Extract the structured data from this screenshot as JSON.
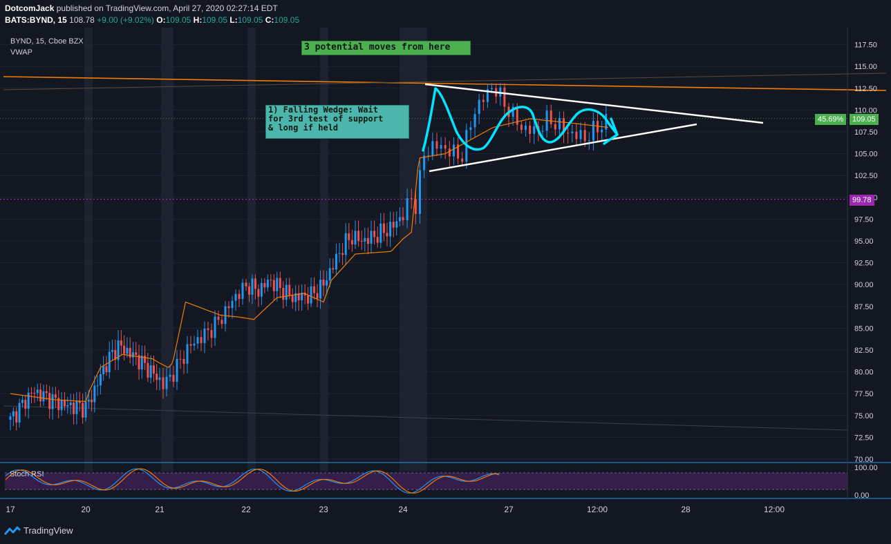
{
  "header": {
    "author": "DotcomJack",
    "published_text": "published on TradingView.com, April 27, 2020 02:27:14 EDT",
    "symbol_line": "BATS:BYND, 15",
    "last": "108.78",
    "change": "+9.00 (+9.02%)",
    "open_label": "O:",
    "open": "109.05",
    "high_label": "H:",
    "high": "109.05",
    "low_label": "L:",
    "low": "109.05",
    "close_label": "C:",
    "close": "109.05"
  },
  "legend": {
    "symbol": "BYND, 15, Cboe BZX",
    "indicator": "VWAP",
    "oscillator": "Stoch RSI"
  },
  "annotations": {
    "top_note": "3 potential moves from here",
    "wedge_note": [
      "1) Falling Wedge: Wait",
      "for 3rd test of support",
      "& long if held"
    ]
  },
  "price_tags": {
    "current": "109.05",
    "current_pct": "45.69%",
    "level": "99.78"
  },
  "footer": {
    "brand": "TradingView"
  },
  "colors": {
    "background": "#131722",
    "up": "#26a69a",
    "up_candle": "#2196f3",
    "down": "#ef5350",
    "vwap": "#f57c00",
    "annotation_cyan": "#00e5ff",
    "level_line": "#9c27b0",
    "current_tag": "#4caf50"
  },
  "chart_data": [
    {
      "type": "candlestick",
      "title": "BYND, 15, Cboe BZX",
      "y_axis_ticks": [
        "117.50",
        "115.00",
        "112.50",
        "110.00",
        "107.50",
        "105.00",
        "102.50",
        "100.00",
        "97.50",
        "95.00",
        "92.50",
        "90.00",
        "87.50",
        "85.00",
        "82.50",
        "80.00",
        "77.50",
        "75.00",
        "72.50",
        "70.00"
      ],
      "x_axis_ticks": [
        "17",
        "20",
        "21",
        "22",
        "23",
        "24",
        "27",
        "12:00",
        "28",
        "12:00"
      ],
      "ylim": [
        69.5,
        121
      ],
      "price_keypoints": {
        "x": [
          0,
          0.3,
          0.7,
          1.0,
          1.06,
          1.25,
          1.35,
          1.45,
          1.7,
          1.95,
          2.05,
          2.15,
          2.35,
          2.55,
          2.7,
          2.9,
          3.05,
          3.15,
          3.3,
          3.6,
          3.85,
          4.0,
          4.05,
          4.25,
          4.35,
          4.5,
          4.7,
          4.85,
          5.0,
          5.08,
          5.12,
          5.2,
          5.3,
          5.42,
          5.55,
          5.68,
          5.85,
          6.0,
          6.12,
          6.25,
          6.38,
          6.55,
          6.72,
          6.95
        ],
        "y": [
          74.5,
          77.8,
          76.2,
          75.9,
          76.8,
          80.5,
          82.0,
          83.0,
          81.5,
          79.5,
          78.5,
          79.8,
          83.0,
          84.5,
          86.0,
          89.0,
          90.0,
          89.2,
          90.5,
          88.5,
          88.8,
          90.0,
          91.0,
          94.5,
          95.5,
          95.0,
          95.8,
          96.5,
          98.0,
          100.0,
          99.0,
          105.0,
          106.0,
          105.5,
          104.5,
          110.0,
          112.8,
          110.0,
          108.0,
          107.5,
          109.0,
          107.5,
          106.8,
          109.0
        ]
      },
      "vwap_keypoints": {
        "x": [
          0,
          0.6,
          1.0,
          1.06,
          1.2,
          1.5,
          1.9,
          2.1,
          2.15,
          2.3,
          2.7,
          2.9,
          3.1,
          3.4,
          3.75,
          4.0,
          4.1,
          4.4,
          4.85,
          5.08,
          5.15,
          5.4,
          5.85,
          6.2,
          6.6,
          6.95
        ],
        "y": [
          77.5,
          76.8,
          76.6,
          78.0,
          80.5,
          82.0,
          81.5,
          80.5,
          81.0,
          88.0,
          86.5,
          86.3,
          86.0,
          88.5,
          89.0,
          88.0,
          90.5,
          93.5,
          93.8,
          96.0,
          104.5,
          105.0,
          108.0,
          109.0,
          108.5,
          108.0
        ]
      },
      "levels": [
        99.78,
        109.05
      ],
      "current_price": 109.05,
      "current_pct": "45.69%"
    },
    {
      "type": "line",
      "title": "Stoch RSI",
      "y_axis_ticks": [
        "100.00",
        "0.00"
      ],
      "ylim": [
        -15,
        115
      ],
      "band": [
        20,
        80
      ]
    }
  ]
}
